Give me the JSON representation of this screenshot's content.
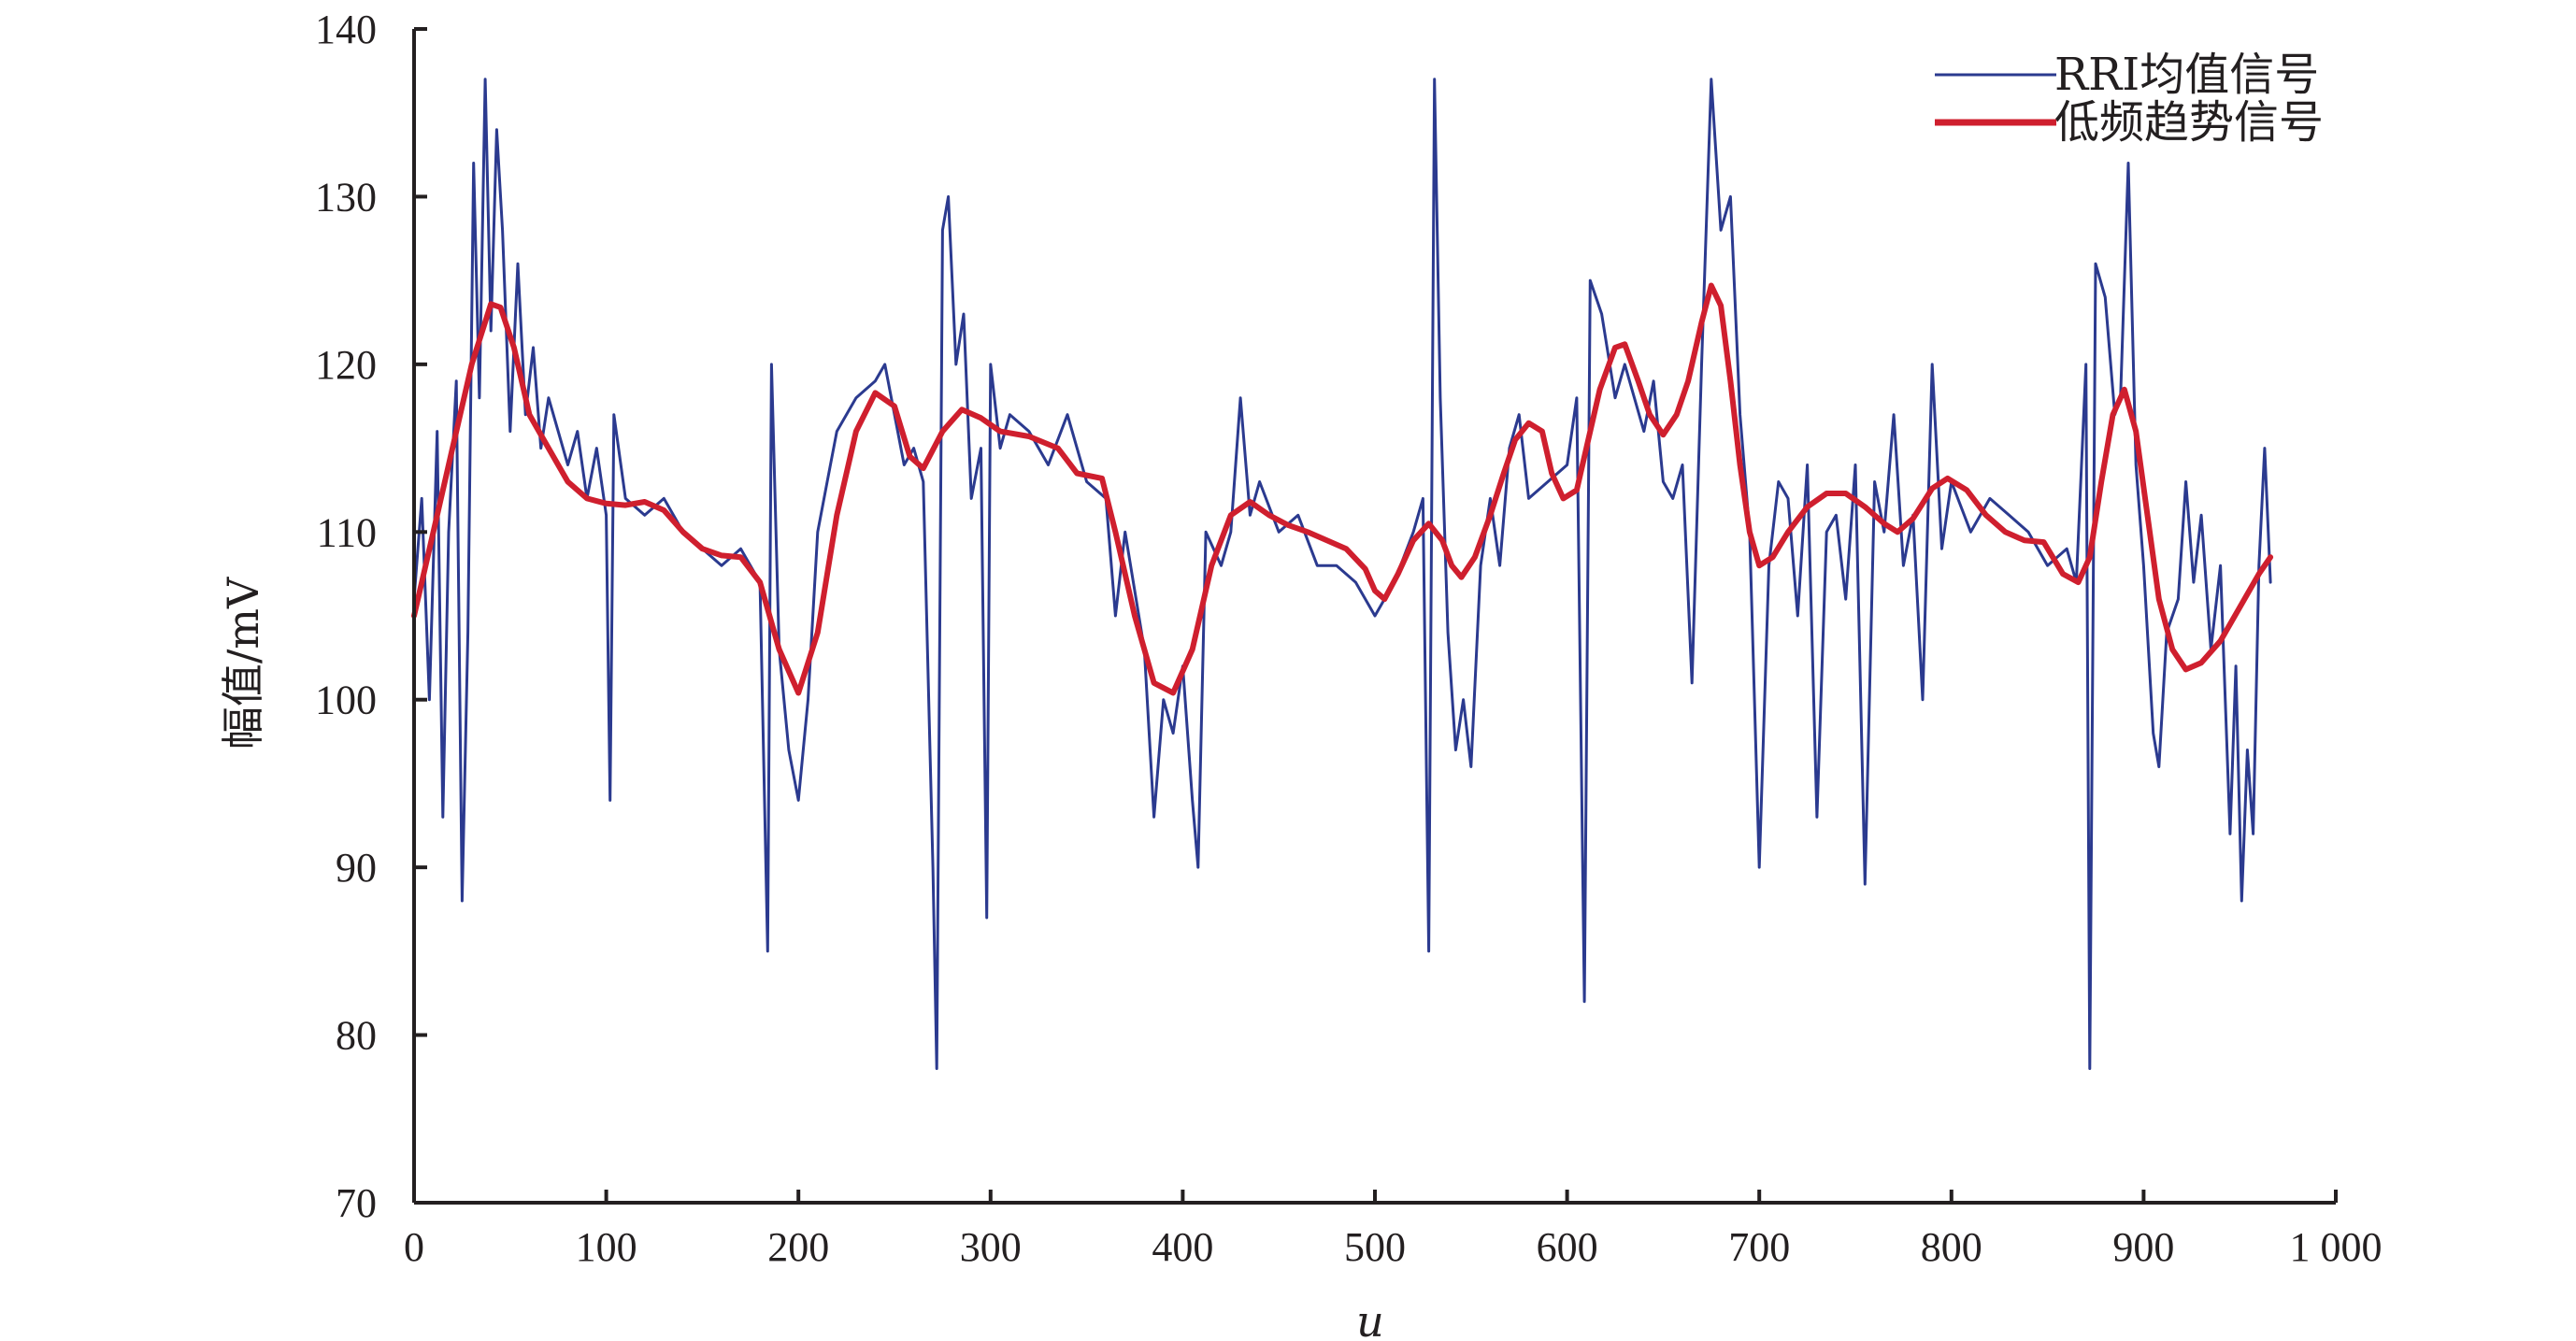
{
  "chart_data": {
    "type": "line",
    "xlabel": "u",
    "ylabel": "幅值/mV",
    "xlim": [
      0,
      1000
    ],
    "ylim": [
      70,
      140
    ],
    "x_ticks": [
      "0",
      "100",
      "200",
      "300",
      "400",
      "500",
      "600",
      "700",
      "800",
      "900",
      "1 000"
    ],
    "y_ticks": [
      "70",
      "80",
      "90",
      "100",
      "110",
      "120",
      "130",
      "140"
    ],
    "legend_position": "top-right",
    "grid": false,
    "colors": {
      "raw": "#2b3a8f",
      "trend": "#cf1f2e"
    },
    "series": [
      {
        "name": "RRI均值信号",
        "points": [
          [
            0,
            106
          ],
          [
            4,
            112
          ],
          [
            8,
            100
          ],
          [
            12,
            116
          ],
          [
            15,
            93
          ],
          [
            18,
            110
          ],
          [
            22,
            119
          ],
          [
            25,
            88
          ],
          [
            28,
            104
          ],
          [
            31,
            132
          ],
          [
            34,
            118
          ],
          [
            37,
            137
          ],
          [
            40,
            122
          ],
          [
            43,
            134
          ],
          [
            46,
            128
          ],
          [
            50,
            116
          ],
          [
            54,
            126
          ],
          [
            58,
            117
          ],
          [
            62,
            121
          ],
          [
            66,
            115
          ],
          [
            70,
            118
          ],
          [
            75,
            116
          ],
          [
            80,
            114
          ],
          [
            85,
            116
          ],
          [
            90,
            112
          ],
          [
            95,
            115
          ],
          [
            100,
            111
          ],
          [
            102,
            94
          ],
          [
            104,
            117
          ],
          [
            110,
            112
          ],
          [
            120,
            111
          ],
          [
            130,
            112
          ],
          [
            140,
            110
          ],
          [
            150,
            109
          ],
          [
            160,
            108
          ],
          [
            170,
            109
          ],
          [
            180,
            107
          ],
          [
            184,
            85
          ],
          [
            186,
            120
          ],
          [
            190,
            103
          ],
          [
            195,
            97
          ],
          [
            200,
            94
          ],
          [
            205,
            100
          ],
          [
            210,
            110
          ],
          [
            215,
            113
          ],
          [
            220,
            116
          ],
          [
            230,
            118
          ],
          [
            240,
            119
          ],
          [
            245,
            120
          ],
          [
            250,
            117
          ],
          [
            255,
            114
          ],
          [
            260,
            115
          ],
          [
            265,
            113
          ],
          [
            270,
            90
          ],
          [
            272,
            78
          ],
          [
            275,
            128
          ],
          [
            278,
            130
          ],
          [
            282,
            120
          ],
          [
            286,
            123
          ],
          [
            290,
            112
          ],
          [
            295,
            115
          ],
          [
            298,
            87
          ],
          [
            300,
            120
          ],
          [
            305,
            115
          ],
          [
            310,
            117
          ],
          [
            320,
            116
          ],
          [
            330,
            114
          ],
          [
            340,
            117
          ],
          [
            350,
            113
          ],
          [
            360,
            112
          ],
          [
            365,
            105
          ],
          [
            370,
            110
          ],
          [
            380,
            103
          ],
          [
            385,
            93
          ],
          [
            390,
            100
          ],
          [
            395,
            98
          ],
          [
            400,
            102
          ],
          [
            405,
            94
          ],
          [
            408,
            90
          ],
          [
            412,
            110
          ],
          [
            420,
            108
          ],
          [
            425,
            110
          ],
          [
            430,
            118
          ],
          [
            435,
            111
          ],
          [
            440,
            113
          ],
          [
            450,
            110
          ],
          [
            460,
            111
          ],
          [
            470,
            108
          ],
          [
            480,
            108
          ],
          [
            490,
            107
          ],
          [
            500,
            105
          ],
          [
            510,
            107
          ],
          [
            520,
            110
          ],
          [
            525,
            112
          ],
          [
            528,
            85
          ],
          [
            531,
            137
          ],
          [
            534,
            118
          ],
          [
            538,
            104
          ],
          [
            542,
            97
          ],
          [
            546,
            100
          ],
          [
            550,
            96
          ],
          [
            555,
            108
          ],
          [
            560,
            112
          ],
          [
            565,
            108
          ],
          [
            570,
            115
          ],
          [
            575,
            117
          ],
          [
            580,
            112
          ],
          [
            590,
            113
          ],
          [
            600,
            114
          ],
          [
            605,
            118
          ],
          [
            609,
            82
          ],
          [
            612,
            125
          ],
          [
            618,
            123
          ],
          [
            625,
            118
          ],
          [
            630,
            120
          ],
          [
            640,
            116
          ],
          [
            645,
            119
          ],
          [
            650,
            113
          ],
          [
            655,
            112
          ],
          [
            660,
            114
          ],
          [
            665,
            101
          ],
          [
            670,
            120
          ],
          [
            675,
            137
          ],
          [
            680,
            128
          ],
          [
            685,
            130
          ],
          [
            690,
            117
          ],
          [
            695,
            110
          ],
          [
            700,
            90
          ],
          [
            705,
            108
          ],
          [
            710,
            113
          ],
          [
            715,
            112
          ],
          [
            720,
            105
          ],
          [
            725,
            114
          ],
          [
            730,
            93
          ],
          [
            735,
            110
          ],
          [
            740,
            111
          ],
          [
            745,
            106
          ],
          [
            750,
            114
          ],
          [
            755,
            89
          ],
          [
            760,
            113
          ],
          [
            765,
            110
          ],
          [
            770,
            117
          ],
          [
            775,
            108
          ],
          [
            780,
            111
          ],
          [
            785,
            100
          ],
          [
            790,
            120
          ],
          [
            795,
            109
          ],
          [
            800,
            113
          ],
          [
            810,
            110
          ],
          [
            820,
            112
          ],
          [
            830,
            111
          ],
          [
            840,
            110
          ],
          [
            850,
            108
          ],
          [
            860,
            109
          ],
          [
            865,
            107
          ],
          [
            870,
            120
          ],
          [
            872,
            78
          ],
          [
            875,
            126
          ],
          [
            880,
            124
          ],
          [
            885,
            117
          ],
          [
            888,
            118
          ],
          [
            892,
            132
          ],
          [
            896,
            114
          ],
          [
            900,
            108
          ],
          [
            905,
            98
          ],
          [
            908,
            96
          ],
          [
            912,
            104
          ],
          [
            918,
            106
          ],
          [
            922,
            113
          ],
          [
            926,
            107
          ],
          [
            930,
            111
          ],
          [
            935,
            103
          ],
          [
            940,
            108
          ],
          [
            945,
            92
          ],
          [
            948,
            102
          ],
          [
            951,
            88
          ],
          [
            954,
            97
          ],
          [
            957,
            92
          ],
          [
            960,
            108
          ],
          [
            963,
            115
          ],
          [
            966,
            107
          ]
        ]
      },
      {
        "name": "低频趋势信号",
        "points": [
          [
            0,
            105
          ],
          [
            10,
            110
          ],
          [
            20,
            115
          ],
          [
            30,
            120
          ],
          [
            40,
            123.6
          ],
          [
            45,
            123.4
          ],
          [
            52,
            121
          ],
          [
            60,
            117
          ],
          [
            70,
            115
          ],
          [
            80,
            113
          ],
          [
            90,
            112
          ],
          [
            100,
            111.7
          ],
          [
            110,
            111.6
          ],
          [
            120,
            111.8
          ],
          [
            130,
            111.3
          ],
          [
            140,
            110
          ],
          [
            150,
            109
          ],
          [
            160,
            108.6
          ],
          [
            170,
            108.5
          ],
          [
            180,
            107
          ],
          [
            190,
            103
          ],
          [
            200,
            100.4
          ],
          [
            210,
            104
          ],
          [
            220,
            111
          ],
          [
            230,
            116
          ],
          [
            240,
            118.3
          ],
          [
            250,
            117.5
          ],
          [
            258,
            114.5
          ],
          [
            265,
            113.8
          ],
          [
            275,
            116
          ],
          [
            285,
            117.3
          ],
          [
            295,
            116.8
          ],
          [
            305,
            116
          ],
          [
            320,
            115.7
          ],
          [
            335,
            115
          ],
          [
            345,
            113.5
          ],
          [
            358,
            113.2
          ],
          [
            365,
            110
          ],
          [
            375,
            105
          ],
          [
            385,
            101
          ],
          [
            395,
            100.4
          ],
          [
            405,
            103
          ],
          [
            415,
            108
          ],
          [
            425,
            111
          ],
          [
            435,
            111.8
          ],
          [
            445,
            111
          ],
          [
            455,
            110.4
          ],
          [
            465,
            110
          ],
          [
            475,
            109.5
          ],
          [
            485,
            109
          ],
          [
            495,
            107.8
          ],
          [
            500,
            106.5
          ],
          [
            505,
            106
          ],
          [
            512,
            107.5
          ],
          [
            520,
            109.5
          ],
          [
            528,
            110.5
          ],
          [
            535,
            109.5
          ],
          [
            540,
            108
          ],
          [
            545,
            107.3
          ],
          [
            552,
            108.5
          ],
          [
            560,
            111
          ],
          [
            567,
            113.5
          ],
          [
            573,
            115.5
          ],
          [
            580,
            116.5
          ],
          [
            587,
            116
          ],
          [
            592,
            113.5
          ],
          [
            598,
            112
          ],
          [
            605,
            112.5
          ],
          [
            610,
            115
          ],
          [
            617,
            118.5
          ],
          [
            625,
            121
          ],
          [
            630,
            121.2
          ],
          [
            637,
            119
          ],
          [
            643,
            117
          ],
          [
            650,
            115.8
          ],
          [
            657,
            117
          ],
          [
            663,
            119
          ],
          [
            670,
            122.5
          ],
          [
            675,
            124.7
          ],
          [
            680,
            123.5
          ],
          [
            685,
            119
          ],
          [
            690,
            114
          ],
          [
            695,
            110
          ],
          [
            700,
            108
          ],
          [
            707,
            108.5
          ],
          [
            715,
            110
          ],
          [
            725,
            111.5
          ],
          [
            735,
            112.3
          ],
          [
            745,
            112.3
          ],
          [
            755,
            111.5
          ],
          [
            765,
            110.5
          ],
          [
            772,
            110
          ],
          [
            780,
            110.8
          ],
          [
            790,
            112.6
          ],
          [
            798,
            113.2
          ],
          [
            808,
            112.5
          ],
          [
            818,
            111
          ],
          [
            828,
            110
          ],
          [
            838,
            109.5
          ],
          [
            848,
            109.4
          ],
          [
            858,
            107.5
          ],
          [
            866,
            107
          ],
          [
            872,
            108.5
          ],
          [
            878,
            113
          ],
          [
            884,
            117
          ],
          [
            890,
            118.5
          ],
          [
            896,
            116
          ],
          [
            902,
            111
          ],
          [
            908,
            106
          ],
          [
            915,
            103
          ],
          [
            922,
            101.8
          ],
          [
            930,
            102.2
          ],
          [
            940,
            103.5
          ],
          [
            950,
            105.5
          ],
          [
            960,
            107.5
          ],
          [
            966,
            108.5
          ]
        ]
      }
    ]
  }
}
